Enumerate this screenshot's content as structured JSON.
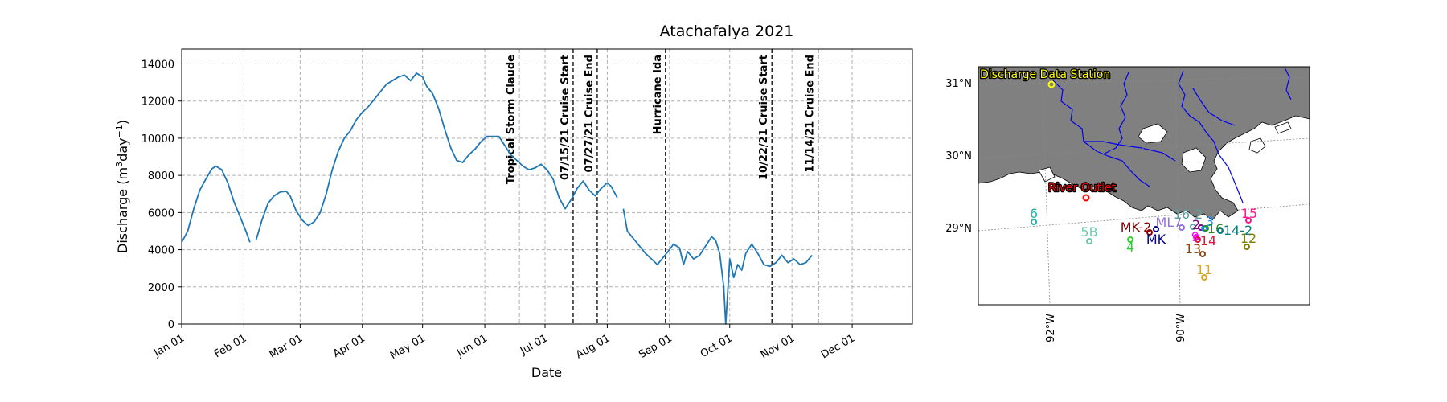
{
  "chart_data": [
    {
      "type": "line",
      "title": "Atachafalya 2021",
      "xlabel": "Date",
      "ylabel_main": "Discharge (m",
      "ylabel_sup1": "3",
      "ylabel_mid": "day",
      "ylabel_sup2": "−1",
      "ylabel_end": ")",
      "xlim": [
        "2021-01-01",
        "2021-12-31"
      ],
      "ylim": [
        0,
        14800
      ],
      "grid": true,
      "x_ticks": [
        {
          "date": "2021-01-01",
          "label": "Jan 01"
        },
        {
          "date": "2021-02-01",
          "label": "Feb 01"
        },
        {
          "date": "2021-03-01",
          "label": "Mar 01"
        },
        {
          "date": "2021-04-01",
          "label": "Apr 01"
        },
        {
          "date": "2021-05-01",
          "label": "May 01"
        },
        {
          "date": "2021-06-01",
          "label": "Jun 01"
        },
        {
          "date": "2021-07-01",
          "label": "Jul 01"
        },
        {
          "date": "2021-08-01",
          "label": "Aug 01"
        },
        {
          "date": "2021-09-01",
          "label": "Sep 01"
        },
        {
          "date": "2021-10-01",
          "label": "Oct 01"
        },
        {
          "date": "2021-11-01",
          "label": "Nov 01"
        },
        {
          "date": "2021-12-01",
          "label": "Dec 01"
        }
      ],
      "y_ticks": [
        0,
        2000,
        4000,
        6000,
        8000,
        10000,
        12000,
        14000
      ],
      "series": [
        {
          "color": "#1f77b4",
          "segments": [
            [
              [
                "2021-01-01",
                4400
              ],
              [
                "2021-01-04",
                5000
              ],
              [
                "2021-01-07",
                6200
              ],
              [
                "2021-01-10",
                7200
              ],
              [
                "2021-01-13",
                7800
              ],
              [
                "2021-01-16",
                8350
              ],
              [
                "2021-01-18",
                8500
              ],
              [
                "2021-01-21",
                8300
              ],
              [
                "2021-01-24",
                7600
              ],
              [
                "2021-01-27",
                6600
              ],
              [
                "2021-01-30",
                5800
              ],
              [
                "2021-02-02",
                5000
              ],
              [
                "2021-02-04",
                4400
              ]
            ],
            [
              [
                "2021-02-07",
                4500
              ],
              [
                "2021-02-10",
                5600
              ],
              [
                "2021-02-13",
                6500
              ],
              [
                "2021-02-16",
                6900
              ],
              [
                "2021-02-19",
                7100
              ],
              [
                "2021-02-22",
                7150
              ],
              [
                "2021-02-24",
                6900
              ],
              [
                "2021-02-27",
                6100
              ],
              [
                "2021-03-02",
                5600
              ],
              [
                "2021-03-05",
                5300
              ],
              [
                "2021-03-08",
                5500
              ],
              [
                "2021-03-11",
                6000
              ],
              [
                "2021-03-14",
                7000
              ],
              [
                "2021-03-17",
                8300
              ],
              [
                "2021-03-20",
                9300
              ],
              [
                "2021-03-23",
                10000
              ],
              [
                "2021-03-26",
                10400
              ],
              [
                "2021-03-29",
                11000
              ],
              [
                "2021-04-01",
                11400
              ],
              [
                "2021-04-04",
                11700
              ],
              [
                "2021-04-07",
                12100
              ],
              [
                "2021-04-10",
                12500
              ],
              [
                "2021-04-13",
                12900
              ],
              [
                "2021-04-16",
                13100
              ],
              [
                "2021-04-19",
                13300
              ],
              [
                "2021-04-22",
                13400
              ],
              [
                "2021-04-25",
                13100
              ],
              [
                "2021-04-28",
                13500
              ],
              [
                "2021-05-01",
                13300
              ],
              [
                "2021-05-03",
                12800
              ],
              [
                "2021-05-06",
                12400
              ],
              [
                "2021-05-09",
                11600
              ],
              [
                "2021-05-12",
                10500
              ],
              [
                "2021-05-15",
                9500
              ],
              [
                "2021-05-18",
                8800
              ],
              [
                "2021-05-21",
                8700
              ],
              [
                "2021-05-24",
                9100
              ],
              [
                "2021-05-27",
                9400
              ],
              [
                "2021-05-30",
                9800
              ],
              [
                "2021-06-02",
                10100
              ],
              [
                "2021-06-05",
                10100
              ],
              [
                "2021-06-08",
                10100
              ],
              [
                "2021-06-11",
                9600
              ],
              [
                "2021-06-14",
                9100
              ],
              [
                "2021-06-17",
                8800
              ],
              [
                "2021-06-20",
                8500
              ],
              [
                "2021-06-23",
                8300
              ],
              [
                "2021-06-26",
                8400
              ],
              [
                "2021-06-29",
                8600
              ],
              [
                "2021-07-02",
                8300
              ],
              [
                "2021-07-05",
                7800
              ],
              [
                "2021-07-08",
                6800
              ],
              [
                "2021-07-11",
                6200
              ],
              [
                "2021-07-14",
                6700
              ],
              [
                "2021-07-17",
                7300
              ],
              [
                "2021-07-20",
                7700
              ],
              [
                "2021-07-23",
                7200
              ],
              [
                "2021-07-26",
                6900
              ],
              [
                "2021-07-29",
                7300
              ],
              [
                "2021-08-01",
                7600
              ],
              [
                "2021-08-03",
                7400
              ],
              [
                "2021-08-06",
                6800
              ]
            ],
            [
              [
                "2021-08-09",
                6200
              ],
              [
                "2021-08-11",
                5000
              ],
              [
                "2021-08-14",
                4600
              ],
              [
                "2021-08-17",
                4200
              ],
              [
                "2021-08-20",
                3800
              ],
              [
                "2021-08-23",
                3500
              ],
              [
                "2021-08-26",
                3200
              ],
              [
                "2021-08-29",
                3600
              ],
              [
                "2021-09-01",
                4000
              ],
              [
                "2021-09-03",
                4300
              ],
              [
                "2021-09-06",
                4100
              ],
              [
                "2021-09-08",
                3200
              ],
              [
                "2021-09-10",
                3900
              ],
              [
                "2021-09-13",
                3500
              ],
              [
                "2021-09-16",
                3700
              ],
              [
                "2021-09-19",
                4200
              ],
              [
                "2021-09-22",
                4700
              ],
              [
                "2021-09-24",
                4500
              ],
              [
                "2021-09-26",
                3800
              ],
              [
                "2021-09-28",
                2000
              ],
              [
                "2021-09-29",
                0
              ],
              [
                "2021-10-01",
                3500
              ],
              [
                "2021-10-03",
                2500
              ],
              [
                "2021-10-05",
                3200
              ],
              [
                "2021-10-07",
                2900
              ],
              [
                "2021-10-09",
                3800
              ],
              [
                "2021-10-12",
                4300
              ],
              [
                "2021-10-15",
                3800
              ],
              [
                "2021-10-18",
                3200
              ],
              [
                "2021-10-21",
                3100
              ],
              [
                "2021-10-24",
                3300
              ],
              [
                "2021-10-27",
                3700
              ],
              [
                "2021-10-30",
                3300
              ],
              [
                "2021-11-02",
                3500
              ],
              [
                "2021-11-05",
                3200
              ],
              [
                "2021-11-08",
                3300
              ],
              [
                "2021-11-11",
                3700
              ]
            ]
          ]
        }
      ],
      "event_lines": [
        {
          "date": "2021-06-18",
          "label": "Tropical Storm Claude"
        },
        {
          "date": "2021-07-15",
          "label": "07/15/21 Cruise Start"
        },
        {
          "date": "2021-07-27",
          "label": "07/27/21 Cruise End"
        },
        {
          "date": "2021-08-30",
          "label": "Hurricane Ida"
        },
        {
          "date": "2021-10-22",
          "label": "10/22/21 Cruise Start"
        },
        {
          "date": "2021-11-14",
          "label": "11/14/21 Cruise End"
        }
      ]
    },
    {
      "type": "map",
      "lat_ticks": [
        "31°N",
        "30°N",
        "29°N"
      ],
      "lon_ticks": [
        "92°W",
        "90°W"
      ],
      "labeled_points": [
        {
          "label": "Discharge Data Station",
          "color": "#ffff00",
          "style": "highlight-label"
        },
        {
          "label": "River Outlet",
          "color": "#ff0000",
          "style": "highlight-label"
        }
      ],
      "stations": [
        {
          "label": "6",
          "color": "#20b2aa"
        },
        {
          "label": "5B",
          "color": "#66cdaa"
        },
        {
          "label": "4",
          "color": "#32cd32"
        },
        {
          "label": "MK-2",
          "color": "#8b0000"
        },
        {
          "label": "MK",
          "color": "#00008b"
        },
        {
          "label": "ML7",
          "color": "#9370db"
        },
        {
          "label": "16-2",
          "color": "#5f9ea0"
        },
        {
          "label": "2",
          "color": "#800080"
        },
        {
          "label": "3",
          "color": "#1e90ff"
        },
        {
          "label": "16",
          "color": "#228b22"
        },
        {
          "label": "14-2",
          "color": "#008080"
        },
        {
          "label": "15",
          "color": "#ff1493"
        },
        {
          "label": "9",
          "color": "#ff00ff"
        },
        {
          "label": "14",
          "color": "#dc143c"
        },
        {
          "label": "12",
          "color": "#808000"
        },
        {
          "label": "13",
          "color": "#8b4513"
        },
        {
          "label": "11",
          "color": "#daa520"
        }
      ]
    }
  ]
}
